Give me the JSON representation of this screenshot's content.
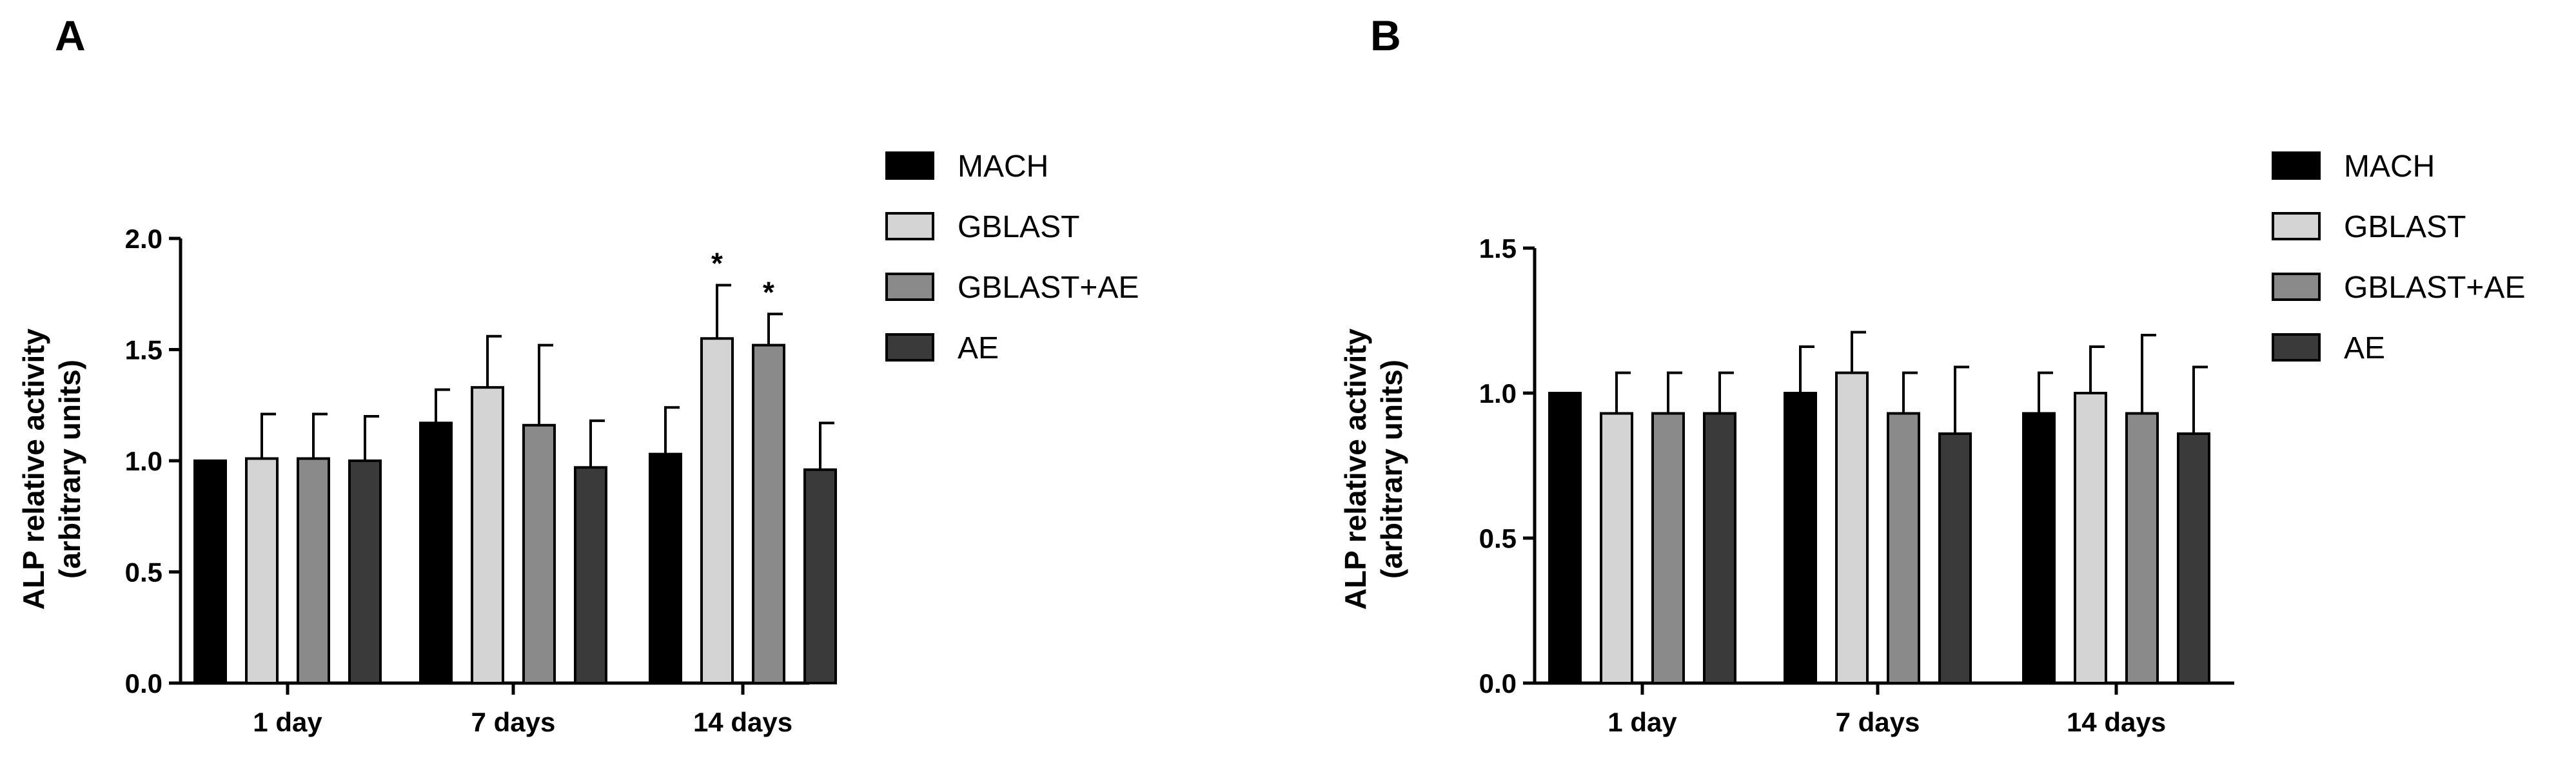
{
  "colors": {
    "MACH": "#000000",
    "GBLAST": "#d4d4d4",
    "GBLAST+AE": "#8a8a8a",
    "AE": "#3a3a3a"
  },
  "chart_data": [
    {
      "panel": "A",
      "type": "bar",
      "ylabel_line1": "ALP relative activity",
      "ylabel_line2": "(arbitrary units)",
      "categories": [
        "1 day",
        "7 days",
        "14 days"
      ],
      "ylim": [
        0,
        2.0
      ],
      "yticks": [
        0.0,
        0.5,
        1.0,
        1.5,
        2.0
      ],
      "ytick_labels": [
        "0.0",
        "0.5",
        "1.0",
        "1.5",
        "2.0"
      ],
      "legend_position": "right",
      "series": [
        {
          "name": "MACH",
          "values": [
            1.0,
            1.17,
            1.03
          ],
          "errors": [
            0.0,
            0.15,
            0.21
          ],
          "sig": [
            "",
            "",
            ""
          ]
        },
        {
          "name": "GBLAST",
          "values": [
            1.01,
            1.33,
            1.55
          ],
          "errors": [
            0.2,
            0.23,
            0.24
          ],
          "sig": [
            "",
            "",
            "*"
          ]
        },
        {
          "name": "GBLAST+AE",
          "values": [
            1.01,
            1.16,
            1.52
          ],
          "errors": [
            0.2,
            0.36,
            0.14
          ],
          "sig": [
            "",
            "",
            "*"
          ]
        },
        {
          "name": "AE",
          "values": [
            1.0,
            0.97,
            0.96
          ],
          "errors": [
            0.2,
            0.21,
            0.21
          ],
          "sig": [
            "",
            "",
            ""
          ]
        }
      ]
    },
    {
      "panel": "B",
      "type": "bar",
      "ylabel_line1": "ALP relative activity",
      "ylabel_line2": "(arbitrary units)",
      "categories": [
        "1 day",
        "7 days",
        "14 days"
      ],
      "ylim": [
        0,
        1.5
      ],
      "yticks": [
        0.0,
        0.5,
        1.0,
        1.5
      ],
      "ytick_labels": [
        "0.0",
        "0.5",
        "1.0",
        "1.5"
      ],
      "legend_position": "right",
      "series": [
        {
          "name": "MACH",
          "values": [
            1.0,
            1.0,
            0.93
          ],
          "errors": [
            0.0,
            0.16,
            0.14
          ],
          "sig": [
            "",
            "",
            ""
          ]
        },
        {
          "name": "GBLAST",
          "values": [
            0.93,
            1.07,
            1.0
          ],
          "errors": [
            0.14,
            0.14,
            0.16
          ],
          "sig": [
            "",
            "",
            ""
          ]
        },
        {
          "name": "GBLAST+AE",
          "values": [
            0.93,
            0.93,
            0.93
          ],
          "errors": [
            0.14,
            0.14,
            0.27
          ],
          "sig": [
            "",
            "",
            ""
          ]
        },
        {
          "name": "AE",
          "values": [
            0.93,
            0.86,
            0.86
          ],
          "errors": [
            0.14,
            0.23,
            0.23
          ],
          "sig": [
            "",
            "",
            ""
          ]
        }
      ]
    }
  ]
}
